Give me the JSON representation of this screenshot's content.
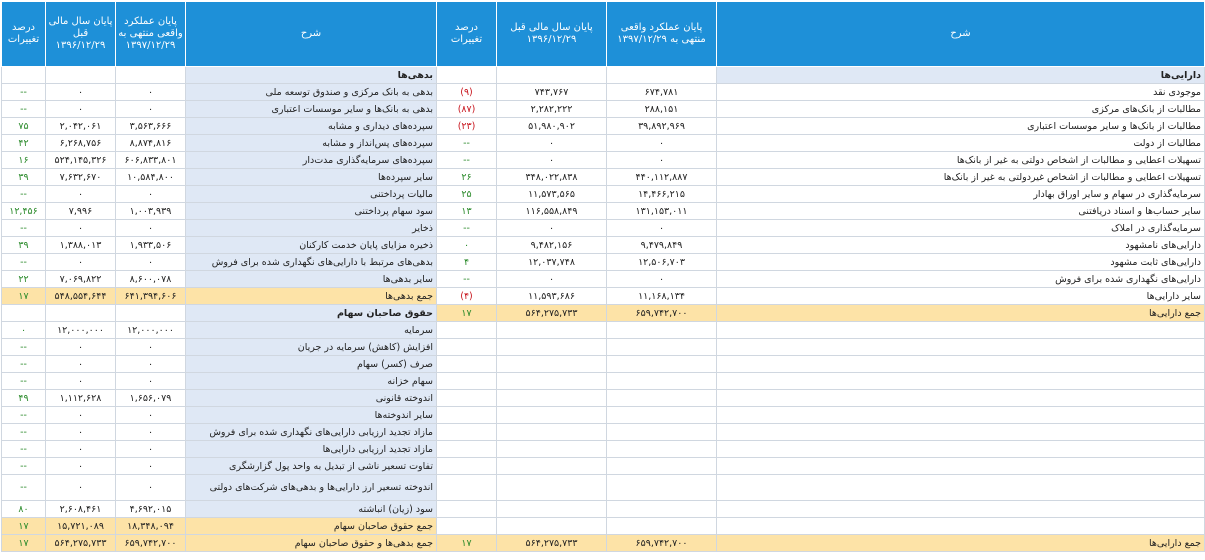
{
  "headers": {
    "desc": "شرح",
    "current": "پایان عملکرد واقعی منتهی به ۱۳۹۷/۱۲/۲۹",
    "prior": "پایان سال مالی قبل ۱۳۹۶/۱۲/۲۹",
    "pct": "درصد تغییرات"
  },
  "assets": {
    "section": "دارایی‌ها",
    "rows": [
      {
        "label": "موجودی نقد",
        "current": "۶۷۴,۷۸۱",
        "prior": "۷۴۳,۷۶۷",
        "pct": "(۹)",
        "tone": "neg"
      },
      {
        "label": "مطالبات از بانک‌های مرکزی",
        "current": "۲۸۸,۱۵۱",
        "prior": "۲,۲۸۲,۲۲۲",
        "pct": "(۸۷)",
        "tone": "neg"
      },
      {
        "label": "مطالبات از بانک‌ها و سایر موسسات اعتباری",
        "current": "۳۹,۸۹۲,۹۶۹",
        "prior": "۵۱,۹۸۰,۹۰۲",
        "pct": "(۲۳)",
        "tone": "neg"
      },
      {
        "label": "مطالبات از دولت",
        "current": "۰",
        "prior": "۰",
        "pct": "--",
        "tone": "dash"
      },
      {
        "label": "تسهیلات اعطایی و مطالبات از اشخاص دولتی به غیر از بانک‌ها",
        "current": "۰",
        "prior": "۰",
        "pct": "--",
        "tone": "dash"
      },
      {
        "label": "تسهیلات اعطایی و مطالبات از اشخاص غیردولتی به غیر از بانک‌ها",
        "current": "۴۴۰,۱۱۲,۸۸۷",
        "prior": "۳۴۸,۰۲۲,۸۳۸",
        "pct": "۲۶",
        "tone": "pos"
      },
      {
        "label": "سرمایه‌گذاری در سهام و سایر اوراق بهادار",
        "current": "۱۴,۴۶۶,۲۱۵",
        "prior": "۱۱,۵۷۳,۵۶۵",
        "pct": "۲۵",
        "tone": "pos"
      },
      {
        "label": "سایر حساب‌ها و اسناد دریافتنی",
        "current": "۱۳۱,۱۵۳,۰۱۱",
        "prior": "۱۱۶,۵۵۸,۸۴۹",
        "pct": "۱۳",
        "tone": "pos"
      },
      {
        "label": "سرمایه‌گذاری در املاک",
        "current": "۰",
        "prior": "۰",
        "pct": "--",
        "tone": "dash"
      },
      {
        "label": "دارایی‌های نامشهود",
        "current": "۹,۴۷۹,۸۴۹",
        "prior": "۹,۴۸۲,۱۵۶",
        "pct": "۰",
        "tone": "pos"
      },
      {
        "label": "دارایی‌های ثابت مشهود",
        "current": "۱۲,۵۰۶,۷۰۳",
        "prior": "۱۲,۰۳۷,۷۴۸",
        "pct": "۴",
        "tone": "pos"
      },
      {
        "label": "دارایی‌های نگهداری شده برای فروش",
        "current": "۰",
        "prior": "۰",
        "pct": "--",
        "tone": "dash"
      },
      {
        "label": "سایر دارایی‌ها",
        "current": "۱۱,۱۶۸,۱۳۴",
        "prior": "۱۱,۵۹۳,۶۸۶",
        "pct": "(۴)",
        "tone": "neg"
      }
    ],
    "total": {
      "label": "جمع دارایی‌ها",
      "current": "۶۵۹,۷۴۲,۷۰۰",
      "prior": "۵۶۴,۲۷۵,۷۳۳",
      "pct": "۱۷"
    }
  },
  "liabilities": {
    "section": "بدهی‌ها",
    "rows": [
      {
        "label": "بدهی به بانک مرکزی و صندوق توسعه ملی",
        "current": "۰",
        "prior": "۰",
        "pct": "--",
        "tone": "dash"
      },
      {
        "label": "بدهی به بانک‌ها و سایر موسسات اعتباری",
        "current": "۰",
        "prior": "۰",
        "pct": "--",
        "tone": "dash"
      },
      {
        "label": "سپرده‌های دیداری و مشابه",
        "current": "۳,۵۶۳,۶۶۶",
        "prior": "۲,۰۴۲,۰۶۱",
        "pct": "۷۵",
        "tone": "pos"
      },
      {
        "label": "سپرده‌های پس‌انداز و مشابه",
        "current": "۸,۸۷۴,۸۱۶",
        "prior": "۶,۲۶۸,۷۵۶",
        "pct": "۴۲",
        "tone": "pos"
      },
      {
        "label": "سپرده‌های سرمایه‌گذاری مدت‌دار",
        "current": "۶۰۶,۸۳۳,۸۰۱",
        "prior": "۵۲۴,۱۴۵,۳۲۶",
        "pct": "۱۶",
        "tone": "pos"
      },
      {
        "label": "سایر سپرده‌ها",
        "current": "۱۰,۵۸۴,۸۰۰",
        "prior": "۷,۶۳۲,۶۷۰",
        "pct": "۳۹",
        "tone": "pos"
      },
      {
        "label": "مالیات پرداختنی",
        "current": "۰",
        "prior": "۰",
        "pct": "--",
        "tone": "dash"
      },
      {
        "label": "سود سهام پرداختنی",
        "current": "۱,۰۰۳,۹۳۹",
        "prior": "۷,۹۹۶",
        "pct": "۱۲,۴۵۶",
        "tone": "pos"
      },
      {
        "label": "ذخایر",
        "current": "۰",
        "prior": "۰",
        "pct": "--",
        "tone": "dash"
      },
      {
        "label": "ذخیره مزایای پایان خدمت کارکنان",
        "current": "۱,۹۳۳,۵۰۶",
        "prior": "۱,۳۸۸,۰۱۳",
        "pct": "۳۹",
        "tone": "pos"
      },
      {
        "label": "بدهی‌های مرتبط با دارایی‌های نگهداری شده برای فروش",
        "current": "۰",
        "prior": "۰",
        "pct": "--",
        "tone": "dash"
      },
      {
        "label": "سایر بدهی‌ها",
        "current": "۸,۶۰۰,۰۷۸",
        "prior": "۷,۰۶۹,۸۲۲",
        "pct": "۲۲",
        "tone": "pos"
      }
    ],
    "total": {
      "label": "جمع بدهی‌ها",
      "current": "۶۴۱,۳۹۴,۶۰۶",
      "prior": "۵۴۸,۵۵۴,۶۴۴",
      "pct": "۱۷"
    }
  },
  "equity": {
    "section": "حقوق صاحبان سهام",
    "rows": [
      {
        "label": "سرمایه",
        "current": "۱۲,۰۰۰,۰۰۰",
        "prior": "۱۲,۰۰۰,۰۰۰",
        "pct": "۰",
        "tone": "pos"
      },
      {
        "label": "افزایش (کاهش) سرمایه در جریان",
        "current": "۰",
        "prior": "۰",
        "pct": "--",
        "tone": "dash"
      },
      {
        "label": "صرف (کسر) سهام",
        "current": "۰",
        "prior": "۰",
        "pct": "--",
        "tone": "dash"
      },
      {
        "label": "سهام خزانه",
        "current": "۰",
        "prior": "۰",
        "pct": "--",
        "tone": "dash"
      },
      {
        "label": "اندوخته قانونی",
        "current": "۱,۶۵۶,۰۷۹",
        "prior": "۱,۱۱۲,۶۲۸",
        "pct": "۴۹",
        "tone": "pos"
      },
      {
        "label": "سایر اندوخته‌ها",
        "current": "۰",
        "prior": "۰",
        "pct": "--",
        "tone": "dash"
      },
      {
        "label": "مازاد تجدید ارزیابی دارایی‌های نگهداری شده برای فروش",
        "current": "۰",
        "prior": "۰",
        "pct": "--",
        "tone": "dash"
      },
      {
        "label": "مازاد تجدید ارزیابی دارایی‌ها",
        "current": "۰",
        "prior": "۰",
        "pct": "--",
        "tone": "dash"
      },
      {
        "label": "تفاوت تسعیر ناشی از تبدیل به واحد پول گزارشگری",
        "current": "۰",
        "prior": "۰",
        "pct": "--",
        "tone": "dash"
      },
      {
        "label": "اندوخته تسعیر ارز دارایی‌ها و بدهی‌های شرکت‌های دولتی",
        "current": "۰",
        "prior": "۰",
        "pct": "--",
        "tone": "dash",
        "tall": true
      },
      {
        "label": "سود (زیان) انباشته",
        "current": "۴,۶۹۲,۰۱۵",
        "prior": "۲,۶۰۸,۴۶۱",
        "pct": "۸۰",
        "tone": "pos"
      }
    ],
    "total": {
      "label": "جمع حقوق صاحبان سهام",
      "current": "۱۸,۳۴۸,۰۹۴",
      "prior": "۱۵,۷۲۱,۰۸۹",
      "pct": "۱۷"
    }
  },
  "grand_total": {
    "label": "جمع بدهی‌ها و حقوق صاحبان سهام",
    "current": "۶۵۹,۷۴۲,۷۰۰",
    "prior": "۵۶۴,۲۷۵,۷۳۳",
    "pct": "۱۷"
  }
}
